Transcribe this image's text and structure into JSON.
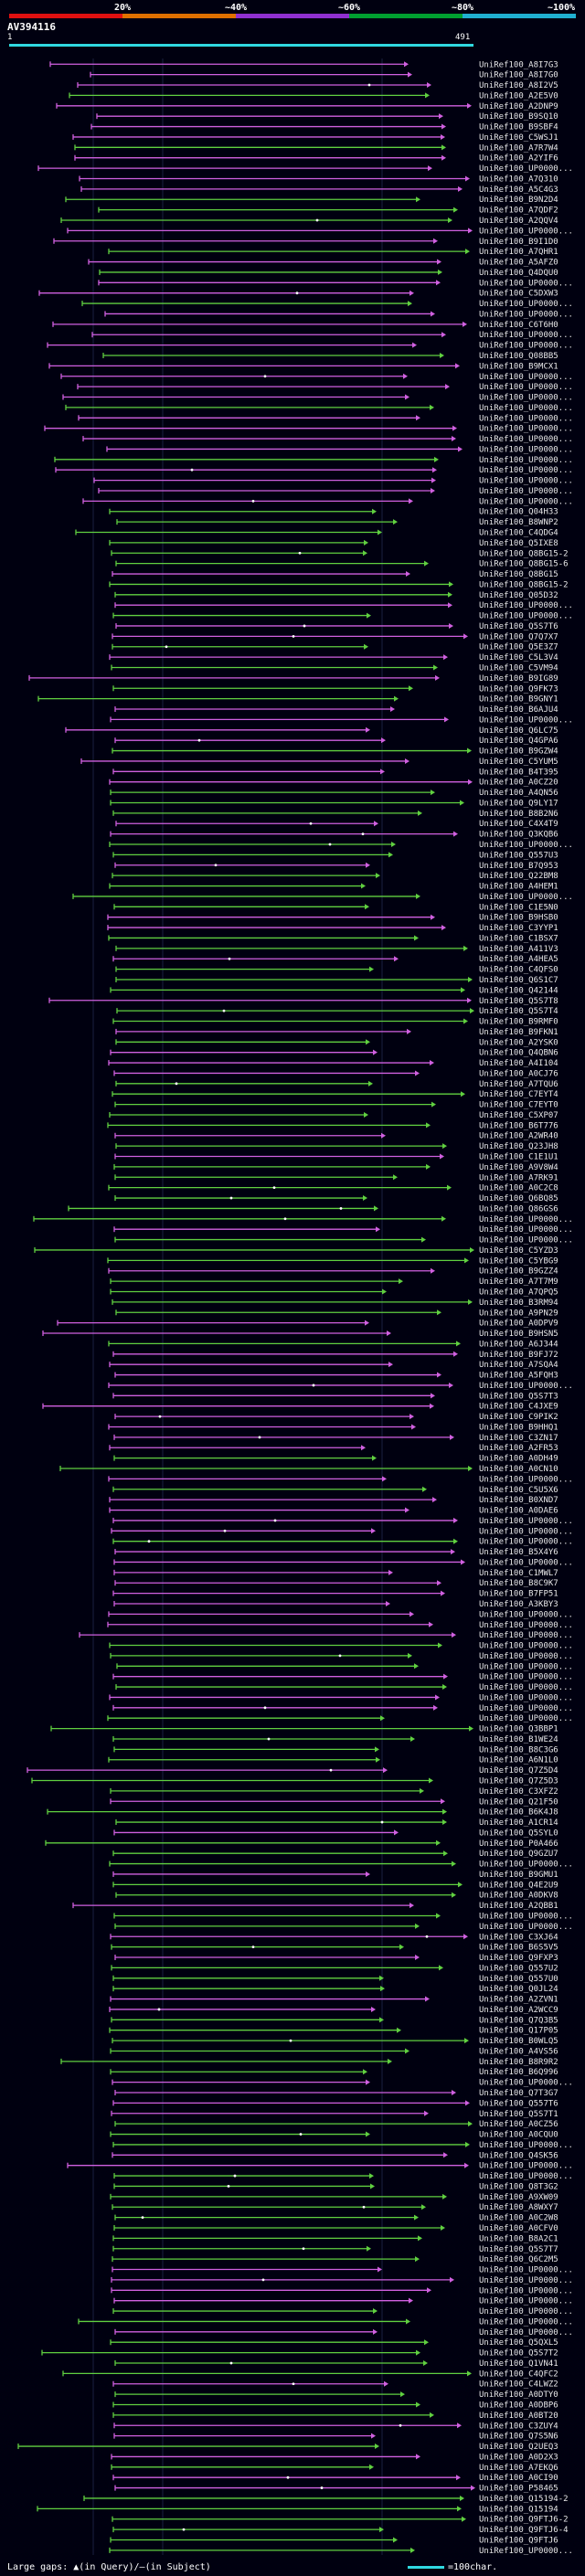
{
  "title": "AV394116",
  "scale": {
    "ticks": [
      "20%",
      "~40%",
      "~60%",
      "~80%",
      "~100%"
    ],
    "colors": [
      "#e01010",
      "#e07000",
      "#9030d0",
      "#00a030",
      "#20b0d0"
    ]
  },
  "query": {
    "start": "1",
    "end": "491",
    "color": "#30d8e0"
  },
  "colors": {
    "high": "#60d040",
    "mid": "#d060e0",
    "low": "#1060e0"
  },
  "hits": [
    "UniRef100_A8I7G3",
    "UniRef100_A8I7G0",
    "UniRef100_A8I2V5",
    "UniRef100_A2E5V0",
    "UniRef100_A2DNP9",
    "UniRef100_B9SQ10",
    "UniRef100_B9SBF4",
    "UniRef100_C5WSJ1",
    "UniRef100_A7R7W4",
    "UniRef100_A2YIF6",
    "UniRef100_UP0000...",
    "UniRef100_A7Q310",
    "UniRef100_A5C4G3",
    "UniRef100_B9N2D4",
    "UniRef100_A7QDF2",
    "UniRef100_A2QQV4",
    "UniRef100_UP0000...",
    "UniRef100_B9I1D0",
    "UniRef100_A7QHR1",
    "UniRef100_A5AFZ0",
    "UniRef100_Q4DQU0",
    "UniRef100_UP0000...",
    "UniRef100_C5DXW3",
    "UniRef100_UP0000...",
    "UniRef100_UP0000...",
    "UniRef100_C6T6H0",
    "UniRef100_UP0000...",
    "UniRef100_UP0000...",
    "UniRef100_Q08BB5",
    "UniRef100_B9MCX1",
    "UniRef100_UP0000...",
    "UniRef100_UP0000...",
    "UniRef100_UP0000...",
    "UniRef100_UP0000...",
    "UniRef100_UP0000...",
    "UniRef100_UP0000...",
    "UniRef100_UP0000...",
    "UniRef100_UP0000...",
    "UniRef100_UP0000...",
    "UniRef100_UP0000...",
    "UniRef100_UP0000...",
    "UniRef100_UP0000...",
    "UniRef100_UP0000...",
    "UniRef100_Q04H33",
    "UniRef100_B8WNP2",
    "UniRef100_C4QDG4",
    "UniRef100_Q5IXE8",
    "UniRef100_Q8BG15-2",
    "UniRef100_Q8BG15-6",
    "UniRef100_Q8BG15",
    "UniRef100_Q8BG15-2",
    "UniRef100_Q05D32",
    "UniRef100_UP0000...",
    "UniRef100_UP0000...",
    "UniRef100_Q5S7T6",
    "UniRef100_Q7Q7X7",
    "UniRef100_Q5E3Z7",
    "UniRef100_C5L3V4",
    "UniRef100_C5VM94",
    "UniRef100_B9IG89",
    "UniRef100_Q9FK73",
    "UniRef100_B9GNY1",
    "UniRef100_B6AJU4",
    "UniRef100_UP0000...",
    "UniRef100_Q6LC75",
    "UniRef100_Q4GPA6",
    "UniRef100_B9GZW4",
    "UniRef100_C5YUM5",
    "UniRef100_B4T395",
    "UniRef100_A0CZ20",
    "UniRef100_A4QN56",
    "UniRef100_Q9LY17",
    "UniRef100_B8B2N6",
    "UniRef100_C4X4T9",
    "UniRef100_Q3KQB6",
    "UniRef100_UP0000...",
    "UniRef100_Q557U3",
    "UniRef100_B7Q953",
    "UniRef100_Q22BM8",
    "UniRef100_A4HEM1",
    "UniRef100_UP0000...",
    "UniRef100_C1E5N0",
    "UniRef100_B9HSB0",
    "UniRef100_C3YYP1",
    "UniRef100_C1BSX7",
    "UniRef100_A411V3",
    "UniRef100_A4HEA5",
    "UniRef100_C4QFS0",
    "UniRef100_Q6S1C7",
    "UniRef100_Q42144",
    "UniRef100_Q5S7T8",
    "UniRef100_Q5S7T4",
    "UniRef100_B9RMF0",
    "UniRef100_B9FKN1",
    "UniRef100_A2YSK0",
    "UniRef100_Q4QBN6",
    "UniRef100_A4I104",
    "UniRef100_A0CJ76",
    "UniRef100_A7TQU6",
    "UniRef100_C7EYT4",
    "UniRef100_C7EYT0",
    "UniRef100_C5XP07",
    "UniRef100_B6T776",
    "UniRef100_A2WR40",
    "UniRef100_Q23JH8",
    "UniRef100_C1E1U1",
    "UniRef100_A9V8W4",
    "UniRef100_A7RK91",
    "UniRef100_A0C2C8",
    "UniRef100_Q6BQ85",
    "UniRef100_Q86GS6",
    "UniRef100_UP0000...",
    "UniRef100_UP0000...",
    "UniRef100_UP0000...",
    "UniRef100_C5YZD3",
    "UniRef100_C5YBG9",
    "UniRef100_B9GZZ4",
    "UniRef100_A7T7M9",
    "UniRef100_A7QPQ5",
    "UniRef100_B3RM94",
    "UniRef100_A9PN29",
    "UniRef100_A0DPV9",
    "UniRef100_B9HSN5",
    "UniRef100_A6J344",
    "UniRef100_B9FJ72",
    "UniRef100_A7SQA4",
    "UniRef100_A5FQH3",
    "UniRef100_UP0000...",
    "UniRef100_Q5S7T3",
    "UniRef100_C4JXE9",
    "UniRef100_C9PIK2",
    "UniRef100_B9HHQ1",
    "UniRef100_C3ZN17",
    "UniRef100_A2FR53",
    "UniRef100_A0DH49",
    "UniRef100_A0CN10",
    "UniRef100_UP0000...",
    "UniRef100_C5U5X6",
    "UniRef100_B0XND7",
    "UniRef100_A0DAE6",
    "UniRef100_UP0000...",
    "UniRef100_UP0000...",
    "UniRef100_UP0000...",
    "UniRef100_B5X4Y6",
    "UniRef100_UP0000...",
    "UniRef100_C1MWL7",
    "UniRef100_B8C9K7",
    "UniRef100_B7FP51",
    "UniRef100_A3KBY3",
    "UniRef100_UP0000...",
    "UniRef100_UP0000...",
    "UniRef100_UP0000...",
    "UniRef100_UP0000...",
    "UniRef100_UP0000...",
    "UniRef100_UP0000...",
    "UniRef100_UP0000...",
    "UniRef100_UP0000...",
    "UniRef100_UP0000...",
    "UniRef100_UP0000...",
    "UniRef100_UP0000...",
    "UniRef100_Q3BBP1",
    "UniRef100_B1WE24",
    "UniRef100_B8C3G6",
    "UniRef100_A6N1L0",
    "UniRef100_Q7Z5D4",
    "UniRef100_Q7Z5D3",
    "UniRef100_C3XFZ2",
    "UniRef100_Q21F50",
    "UniRef100_B6K4J8",
    "UniRef100_A1CR14",
    "UniRef100_Q5SYL0",
    "UniRef100_P0A466",
    "UniRef100_Q9GZU7",
    "UniRef100_UP0000...",
    "UniRef100_B9GMU1",
    "UniRef100_Q4E2U9",
    "UniRef100_A0DKV8",
    "UniRef100_A2QBB1",
    "UniRef100_UP0000...",
    "UniRef100_UP0000...",
    "UniRef100_C3XJ64",
    "UniRef100_B6S5V5",
    "UniRef100_Q9FXP3",
    "UniRef100_Q557U2",
    "UniRef100_Q557U0",
    "UniRef100_Q0JL24",
    "UniRef100_A2ZVN1",
    "UniRef100_A2WCC9",
    "UniRef100_Q7Q3B5",
    "UniRef100_Q17P05",
    "UniRef100_B0WLQ5",
    "UniRef100_A4VS56",
    "UniRef100_B8R9R2",
    "UniRef100_B6Q996",
    "UniRef100_UP0000...",
    "UniRef100_Q7T3G7",
    "UniRef100_Q557T6",
    "UniRef100_Q5S7T1",
    "UniRef100_A0CZ56",
    "UniRef100_A0CQU0",
    "UniRef100_UP0000...",
    "UniRef100_Q4SK56",
    "UniRef100_UP0000...",
    "UniRef100_UP0000...",
    "UniRef100_Q8T3G2",
    "UniRef100_A9XW09",
    "UniRef100_A8WXY7",
    "UniRef100_A0C2W8",
    "UniRef100_A0CFV0",
    "UniRef100_B8A2C1",
    "UniRef100_Q5S7T7",
    "UniRef100_Q6C2M5",
    "UniRef100_UP0000...",
    "UniRef100_UP0000...",
    "UniRef100_UP0000...",
    "UniRef100_UP0000...",
    "UniRef100_UP0000...",
    "UniRef100_UP0000...",
    "UniRef100_UP0000...",
    "UniRef100_Q5QXL5",
    "UniRef100_Q5S7T2",
    "UniRef100_Q1VN41",
    "UniRef100_C4QFC2",
    "UniRef100_C4LWZ2",
    "UniRef100_A0DTY0",
    "UniRef100_A0DBP6",
    "UniRef100_A0BT20",
    "UniRef100_C3ZUY4",
    "UniRef100_Q7S5N6",
    "UniRef100_Q2UEQ3",
    "UniRef100_A0D2X3",
    "UniRef100_A7EKQ6",
    "UniRef100_A0CI90",
    "UniRef100_P58465",
    "UniRef100_Q15194-2",
    "UniRef100_Q15194",
    "UniRef100_Q9FTJ6-2",
    "UniRef100_Q9FTJ6-4",
    "UniRef100_Q9FTJ6",
    "UniRef100_UP0000..."
  ],
  "footer": {
    "gap_label": "Large gaps:",
    "query_marker": "▲",
    "query_text": "(in Query)/",
    "subject_marker": "–",
    "subject_text": "(in Subject)",
    "scale_text": "=100char."
  }
}
